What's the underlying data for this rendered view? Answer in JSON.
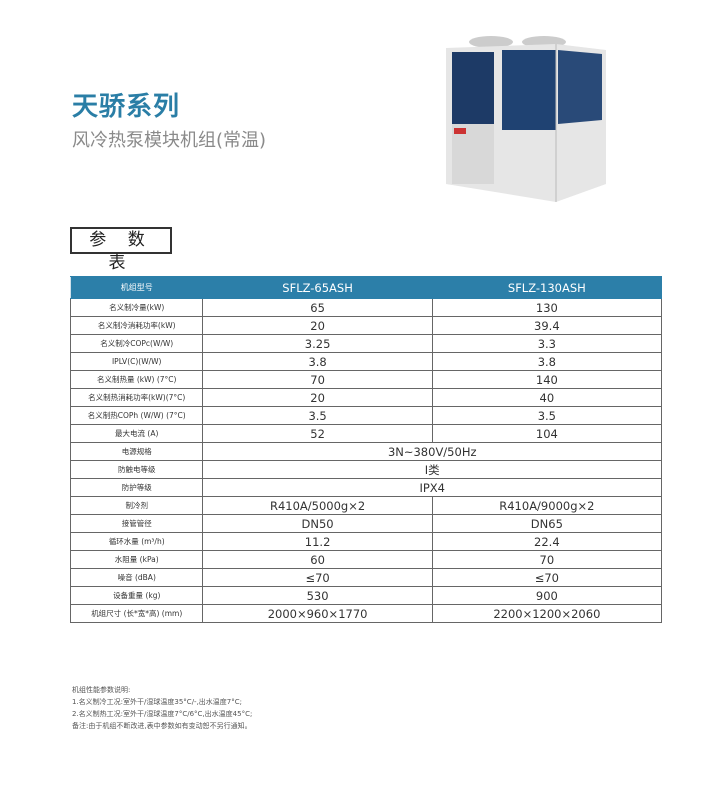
{
  "title": "天骄系列",
  "subtitle": "风冷热泵模块机组(常温)",
  "section_label": "参 数 表",
  "table": {
    "headers": [
      "机组型号",
      "SFLZ-65ASH",
      "SFLZ-130ASH"
    ],
    "rows": [
      [
        "名义制冷量(kW)",
        "65",
        "130"
      ],
      [
        "名义制冷消耗功率(kW)",
        "20",
        "39.4"
      ],
      [
        "名义制冷COPc(W/W)",
        "3.25",
        "3.3"
      ],
      [
        "IPLV(C)(W/W)",
        "3.8",
        "3.8"
      ],
      [
        "名义制热量 (kW) (7°C)",
        "70",
        "140"
      ],
      [
        "名义制热消耗功率(kW)(7°C)",
        "20",
        "40"
      ],
      [
        "名义制热COPh (W/W) (7°C)",
        "3.5",
        "3.5"
      ],
      [
        "最大电流 (A)",
        "52",
        "104"
      ],
      [
        "电源规格",
        "3N~380V/50Hz"
      ],
      [
        "防触电等级",
        "I类"
      ],
      [
        "防护等级",
        "IPX4"
      ],
      [
        "制冷剂",
        "R410A/5000g×2",
        "R410A/9000g×2"
      ],
      [
        "接管管径",
        "DN50",
        "DN65"
      ],
      [
        "循环水量 (m³/h)",
        "11.2",
        "22.4"
      ],
      [
        "水阻量 (kPa)",
        "60",
        "70"
      ],
      [
        "噪音 (dBA)",
        "≤70",
        "≤70"
      ],
      [
        "设备重量 (kg)",
        "530",
        "900"
      ],
      [
        "机组尺寸 (长*宽*高) (mm)",
        "2000×960×1770",
        "2200×1200×2060"
      ]
    ]
  },
  "notes": [
    "机组性能参数说明:",
    "1.名义制冷工况:室外干/湿球温度35°C/-,出水温度7°C;",
    "2.名义制热工况:室外干/湿球温度7°C/6°C,出水温度45°C;",
    "备注:由于机组不断改进,表中参数如有变动恕不另行通知。"
  ],
  "colors": {
    "accent": "#2c7fa9"
  }
}
